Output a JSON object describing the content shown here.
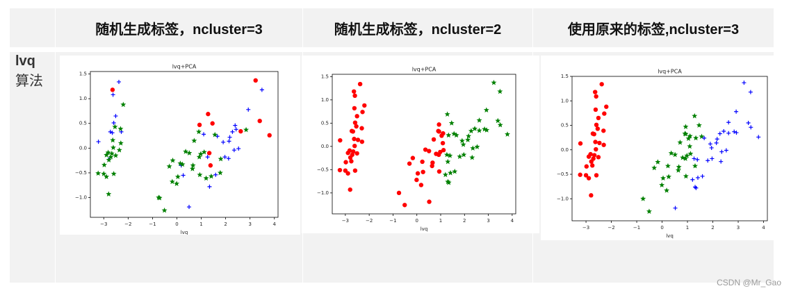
{
  "table": {
    "header": [
      "随机生成标签，ncluster=3",
      "随机生成标签，ncluster=2",
      "使用原来的标签,ncluster=3"
    ],
    "row_label": [
      "lvq",
      "算法"
    ]
  },
  "watermark": "CSDN @Mr_Gao",
  "chart_data": [
    {
      "type": "scatter",
      "title": "lvq+PCA",
      "xlabel": "lvq",
      "xlim": [
        -3.55,
        4.15
      ],
      "ylim": [
        -1.4,
        1.55
      ],
      "xticks": [
        {
          "value": -3,
          "label": "−3"
        },
        {
          "value": -2,
          "label": "−2"
        },
        {
          "value": -1,
          "label": "−1"
        },
        0,
        1,
        2,
        3,
        4
      ],
      "yticks": [
        {
          "value": -1,
          "label": "−1.0"
        },
        {
          "value": -0.5,
          "label": "−0.5"
        },
        {
          "value": 0,
          "label": "0.0"
        },
        0.5,
        {
          "value": 1,
          "label": "1.0"
        },
        1.5
      ],
      "series": [
        {
          "color": "#ff0000",
          "marker": "circle",
          "x": [
            -2.64,
            0.93,
            1.28,
            1.46,
            1.38,
            3.23,
            3.4,
            3.8,
            2.62,
            1.33
          ],
          "y": [
            1.18,
            0.47,
            0.69,
            0.5,
            -0.35,
            1.37,
            0.55,
            0.26,
            0.34,
            -0.1
          ]
        },
        {
          "color": "#0000ff",
          "marker": "plus",
          "x": [
            -2.28,
            -2.51,
            -2.59,
            -2.38,
            -2.62,
            -2.73,
            -2.65,
            -3.22,
            -2.75,
            1.1,
            0.18,
            0.26,
            0.5,
            2.53,
            1.97,
            2.35,
            2.93,
            2.17,
            1.34,
            1.9,
            3.49,
            2.43,
            2.28,
            1.26,
            2.12,
            2.39,
            1.66,
            1.59,
            2.14
          ],
          "y": [
            0.33,
            0.65,
            0.51,
            1.34,
            1.08,
            0.33,
            0.31,
            0.13,
            -0.2,
            0.28,
            -0.35,
            -0.55,
            -1.19,
            -0.01,
            -0.18,
            -0.04,
            0.78,
            0.22,
            -0.78,
            0.12,
            1.18,
            0.38,
            0.33,
            -0.18,
            -0.21,
            0.46,
            0.24,
            -0.54,
            0.14
          ]
        },
        {
          "color": "#008000",
          "marker": "star",
          "x": [
            -2.71,
            -2.89,
            -2.82,
            -2.63,
            -2.89,
            -2.67,
            -2.61,
            -2.79,
            -3.23,
            -2.2,
            -2.31,
            -2.54,
            -2.3,
            -2.36,
            -2.51,
            -2.8,
            -2.98,
            -3.0,
            -2.59,
            0.64,
            -0.75,
            -0.01,
            -0.51,
            0.51,
            0.98,
            -0.17,
            0.66,
            0.23,
            0.94,
            0.04,
            1.12,
            0.36,
            0.92,
            0.71,
            0.9,
            1.56,
            -0.31,
            -0.19,
            0.14,
            1.41,
            1.8,
            2.84,
            1.2,
            1.78,
            -0.71
          ],
          "y": [
            -0.18,
            -0.14,
            -0.09,
            0.16,
            -0.58,
            -0.11,
            0.01,
            -0.24,
            -0.51,
            0.88,
            0.39,
            0.43,
            0.1,
            -0.04,
            -0.15,
            -0.93,
            -0.34,
            -0.52,
            -0.52,
            -0.42,
            -1.0,
            -0.72,
            -1.26,
            -0.1,
            -0.12,
            -0.25,
            -0.35,
            -0.33,
            -0.54,
            -0.58,
            -0.08,
            -0.07,
            -0.18,
            0.15,
            0.33,
            0.27,
            -0.37,
            -0.68,
            -0.31,
            -0.57,
            -0.22,
            0.37,
            -0.61,
            -0.5,
            -1.01
          ]
        }
      ]
    },
    {
      "type": "scatter",
      "title": "lvq+PCA",
      "xlabel": "lvq",
      "xlim": [
        -3.55,
        4.15
      ],
      "ylim": [
        -1.45,
        1.55
      ],
      "xticks": [
        {
          "value": -3,
          "label": "−3"
        },
        {
          "value": -2,
          "label": "−2"
        },
        {
          "value": -1,
          "label": "−1"
        },
        0,
        1,
        2,
        3,
        4
      ],
      "yticks": [
        {
          "value": -1,
          "label": "−1.0"
        },
        {
          "value": -0.5,
          "label": "−0.5"
        },
        {
          "value": 0,
          "label": "0.0"
        },
        0.5,
        {
          "value": 1,
          "label": "1.0"
        },
        1.5
      ],
      "series": [
        {
          "color": "#ff0000",
          "marker": "circle",
          "x": [
            -2.68,
            -2.71,
            -2.89,
            -2.75,
            -2.73,
            -2.28,
            -2.82,
            -2.63,
            -2.89,
            -2.67,
            -2.51,
            -2.61,
            -2.79,
            -3.23,
            -2.64,
            -2.38,
            -2.62,
            -2.2,
            -2.59,
            -2.31,
            -2.54,
            -3.22,
            -2.3,
            -2.51,
            -2.47,
            -2.6,
            -2.8,
            -2.98,
            -3.0,
            -2.59,
            0.93,
            0.18,
            1.09,
            0.64,
            1.1,
            -0.75,
            1.04,
            -0.01,
            -0.51,
            0.51,
            0.26,
            0.98,
            -0.17,
            0.93,
            0.66,
            0.23,
            0.94,
            0.04,
            1.12,
            0.36,
            0.92,
            0.71,
            0.9,
            0.81,
            -0.31,
            0.52
          ],
          "y": [
            0.32,
            -0.18,
            -0.14,
            -0.32,
            0.33,
            0.74,
            -0.09,
            0.16,
            -0.58,
            -0.11,
            0.65,
            0.01,
            -0.24,
            -0.51,
            1.18,
            1.34,
            0.82,
            0.88,
            0.51,
            0.39,
            0.43,
            0.13,
            0.1,
            -0.15,
            0.14,
            1.09,
            -0.93,
            -0.34,
            -0.52,
            -0.52,
            0.32,
            -0.83,
            0.07,
            -0.42,
            0.28,
            -1.0,
            0.23,
            -0.72,
            -1.26,
            -0.1,
            -0.55,
            -0.12,
            -0.25,
            0.47,
            -0.35,
            -0.33,
            -0.54,
            -0.58,
            -0.08,
            -0.07,
            -0.18,
            0.15,
            0.33,
            -0.16,
            -0.37,
            -1.19
          ]
        },
        {
          "color": "#008000",
          "marker": "star",
          "x": [
            1.28,
            1.46,
            1.3,
            1.33,
            1.56,
            2.53,
            1.41,
            2.62,
            1.97,
            2.35,
            3.4,
            2.93,
            2.32,
            2.92,
            1.66,
            1.8,
            2.17,
            1.34,
            1.59,
            1.9,
            1.95,
            3.49,
            3.8,
            1.3,
            2.43,
            1.2,
            3.5,
            1.39,
            2.28,
            2.62,
            1.26,
            3.23,
            2.84,
            2.14
          ],
          "y": [
            0.69,
            0.5,
            -0.33,
            0.24,
            0.27,
            -0.01,
            -0.57,
            0.34,
            -0.18,
            -0.04,
            0.55,
            0.35,
            -0.24,
            0.78,
            0.24,
            -0.22,
            0.22,
            -0.78,
            -0.54,
            0.12,
            0.04,
            1.18,
            0.26,
            -0.76,
            0.38,
            -0.61,
            0.46,
            -0.2,
            0.33,
            0.56,
            -0.18,
            1.37,
            0.37,
            0.14
          ]
        }
      ]
    },
    {
      "type": "scatter",
      "title": "lvq+PCA",
      "xlabel": "lvq",
      "xlim": [
        -3.55,
        4.15
      ],
      "ylim": [
        -1.45,
        1.5
      ],
      "xticks": [
        {
          "value": -3,
          "label": "−3"
        },
        {
          "value": -2,
          "label": "−2"
        },
        {
          "value": -1,
          "label": "−1"
        },
        0,
        1,
        2,
        3,
        4
      ],
      "yticks": [
        {
          "value": -1,
          "label": "−1.0"
        },
        {
          "value": -0.5,
          "label": "−0.5"
        },
        {
          "value": 0,
          "label": "0.0"
        },
        0.5,
        {
          "value": 1,
          "label": "1.0"
        },
        1.5
      ],
      "series": [
        {
          "color": "#ff0000",
          "marker": "circle",
          "x": [
            -2.68,
            -2.71,
            -2.89,
            -2.75,
            -2.73,
            -2.28,
            -2.82,
            -2.63,
            -2.89,
            -2.67,
            -2.51,
            -2.61,
            -2.79,
            -3.23,
            -2.64,
            -2.38,
            -2.62,
            -2.2,
            -2.59,
            -2.31,
            -2.54,
            -3.22,
            -2.3,
            -2.51,
            -2.47,
            -2.6,
            -2.8,
            -2.98,
            -3.0,
            -2.59
          ],
          "y": [
            0.32,
            -0.18,
            -0.14,
            -0.32,
            0.33,
            0.74,
            -0.09,
            0.16,
            -0.58,
            -0.11,
            0.65,
            0.01,
            -0.24,
            -0.51,
            1.18,
            1.34,
            0.82,
            0.88,
            0.51,
            0.39,
            0.43,
            0.13,
            0.1,
            -0.15,
            0.14,
            1.09,
            -0.93,
            -0.34,
            -0.52,
            -0.52
          ]
        },
        {
          "color": "#008000",
          "marker": "star",
          "x": [
            1.28,
            0.93,
            1.46,
            0.18,
            1.09,
            0.64,
            1.1,
            -0.75,
            1.04,
            -0.01,
            -0.51,
            0.51,
            0.26,
            0.98,
            -0.17,
            0.93,
            0.66,
            0.23,
            0.94,
            0.04,
            1.12,
            0.36,
            1.3,
            0.92,
            0.71,
            0.9,
            1.33,
            1.56,
            0.81,
            -0.31
          ],
          "y": [
            0.69,
            0.32,
            0.5,
            -0.83,
            0.07,
            -0.42,
            0.28,
            -1.0,
            0.23,
            -0.72,
            -1.26,
            -0.1,
            -0.55,
            -0.12,
            -0.25,
            0.47,
            -0.35,
            -0.33,
            -0.54,
            -0.58,
            -0.08,
            -0.07,
            -0.33,
            -0.18,
            0.15,
            0.33,
            0.24,
            0.27,
            -0.16,
            -0.37
          ]
        },
        {
          "color": "#0000ff",
          "marker": "plus",
          "x": [
            2.53,
            1.41,
            2.62,
            1.97,
            2.35,
            3.4,
            0.52,
            2.93,
            2.32,
            2.92,
            1.66,
            1.8,
            2.17,
            1.34,
            1.59,
            1.9,
            1.95,
            3.49,
            3.8,
            1.3,
            2.43,
            1.2,
            3.5,
            1.39,
            2.28,
            2.62,
            1.26,
            3.23,
            2.84,
            2.14
          ],
          "y": [
            -0.01,
            -0.57,
            0.34,
            -0.18,
            -0.04,
            0.55,
            -1.19,
            0.35,
            -0.24,
            0.78,
            0.24,
            -0.22,
            0.22,
            -0.78,
            -0.54,
            0.12,
            0.04,
            1.18,
            0.26,
            -0.76,
            0.38,
            -0.61,
            0.46,
            -0.2,
            0.33,
            0.56,
            -0.18,
            1.37,
            0.37,
            0.14
          ]
        }
      ]
    }
  ]
}
